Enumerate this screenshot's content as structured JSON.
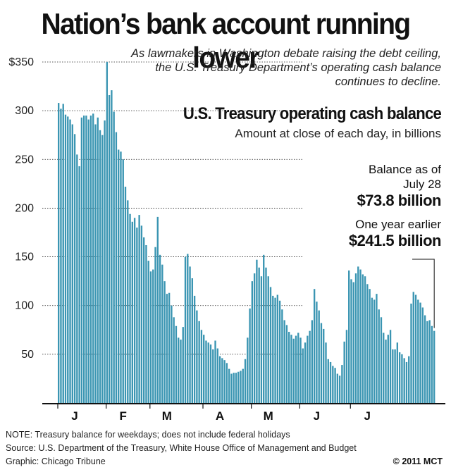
{
  "headline": "Nation’s bank account running lower",
  "intro": "As lawmakers in Washington debate raising the debt ceiling, the U.S. Treasury Department’s operating cash balance continues to decline.",
  "footer": {
    "note": "NOTE: Treasury balance for weekdays; does not include federal holidays",
    "source": "Source: U.S. Department of the Treasury, White House Office of Management and Budget",
    "graphic": "Graphic: Chicago Tribune",
    "copyright": "© 2011 MCT"
  },
  "colors": {
    "bar": "#3a95b2",
    "axis": "#111111",
    "grid": "#222222"
  },
  "chart_data": {
    "type": "bar",
    "title": "U.S. Treasury operating cash balance",
    "subtitle": "Amount at close of each day, in billions",
    "ylim": [
      0,
      350
    ],
    "yticks": [
      50,
      100,
      150,
      200,
      250,
      300,
      350
    ],
    "ytick_labels": [
      "50",
      "100",
      "150",
      "200",
      "250",
      "300",
      "$350"
    ],
    "grid": "dotted horizontal",
    "month_labels": [
      {
        "label": "J",
        "index": 0
      },
      {
        "label": "F",
        "index": 21
      },
      {
        "label": "M",
        "index": 40
      },
      {
        "label": "A",
        "index": 63
      },
      {
        "label": "M",
        "index": 84
      },
      {
        "label": "J",
        "index": 105
      },
      {
        "label": "J",
        "index": 127
      }
    ],
    "values": [
      308,
      302,
      307,
      296,
      294,
      291,
      286,
      276,
      255,
      243,
      293,
      295,
      295,
      291,
      295,
      297,
      286,
      293,
      280,
      275,
      290,
      350,
      316,
      321,
      299,
      278,
      260,
      258,
      250,
      222,
      208,
      194,
      186,
      190,
      180,
      193,
      182,
      170,
      162,
      146,
      135,
      137,
      160,
      191,
      152,
      142,
      125,
      112,
      113,
      100,
      88,
      79,
      67,
      65,
      78,
      150,
      153,
      140,
      128,
      110,
      95,
      84,
      75,
      70,
      64,
      62,
      60,
      55,
      64,
      56,
      48,
      46,
      44,
      41,
      35,
      30,
      31,
      31,
      32,
      33,
      35,
      45,
      67,
      97,
      125,
      133,
      147,
      139,
      130,
      152,
      139,
      130,
      119,
      110,
      108,
      111,
      105,
      96,
      85,
      80,
      73,
      70,
      66,
      69,
      72,
      67,
      56,
      62,
      69,
      74,
      85,
      117,
      104,
      95,
      82,
      76,
      62,
      45,
      42,
      38,
      36,
      30,
      28,
      39,
      63,
      75,
      136,
      127,
      124,
      133,
      140,
      137,
      132,
      130,
      122,
      117,
      108,
      106,
      112,
      96,
      88,
      72,
      65,
      70,
      75,
      55,
      55,
      62,
      52,
      50,
      46,
      42,
      48,
      102,
      114,
      111,
      106,
      103,
      98,
      90,
      84,
      85,
      79,
      74
    ],
    "annotations": [
      {
        "label": "Balance as of July 28",
        "label_line1": "Balance as of",
        "label_line2": "July 28",
        "value": "$73.8 billion"
      },
      {
        "label": "One year earlier",
        "value": "$241.5 billion"
      }
    ]
  }
}
